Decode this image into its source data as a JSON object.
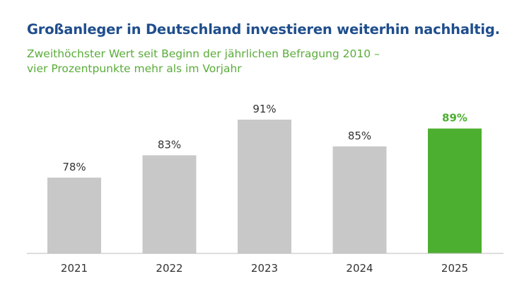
{
  "header": {
    "title": "Großanleger in Deutschland investieren weiterhin nachhaltig.",
    "subtitle_line1": "Zweithöchster Wert seit Beginn der jährlichen Befragung 2010 –",
    "subtitle_line2": "vier Prozentpunkte mehr als im Vorjahr"
  },
  "chart_data": {
    "type": "bar",
    "title": "Großanleger in Deutschland investieren weiterhin nachhaltig.",
    "subtitle": "Zweithöchster Wert seit Beginn der jährlichen Befragung 2010 – vier Prozentpunkte mehr als im Vorjahr",
    "categories": [
      "2021",
      "2022",
      "2023",
      "2024",
      "2025"
    ],
    "values": [
      78,
      83,
      91,
      85,
      89
    ],
    "data_labels": [
      "78%",
      "83%",
      "91%",
      "85%",
      "89%"
    ],
    "highlight_index": 4,
    "colors": {
      "bar": "#c8c8c8",
      "highlight": "#4caf2f",
      "highlight_label": "#4caf2f",
      "label": "#333333",
      "title": "#1f4e8c",
      "subtitle": "#5aac3a",
      "baseline": "#bdbdbd"
    },
    "xlabel": "",
    "ylabel": "",
    "ylim": [
      61,
      93
    ],
    "grid": false,
    "legend": "none"
  }
}
